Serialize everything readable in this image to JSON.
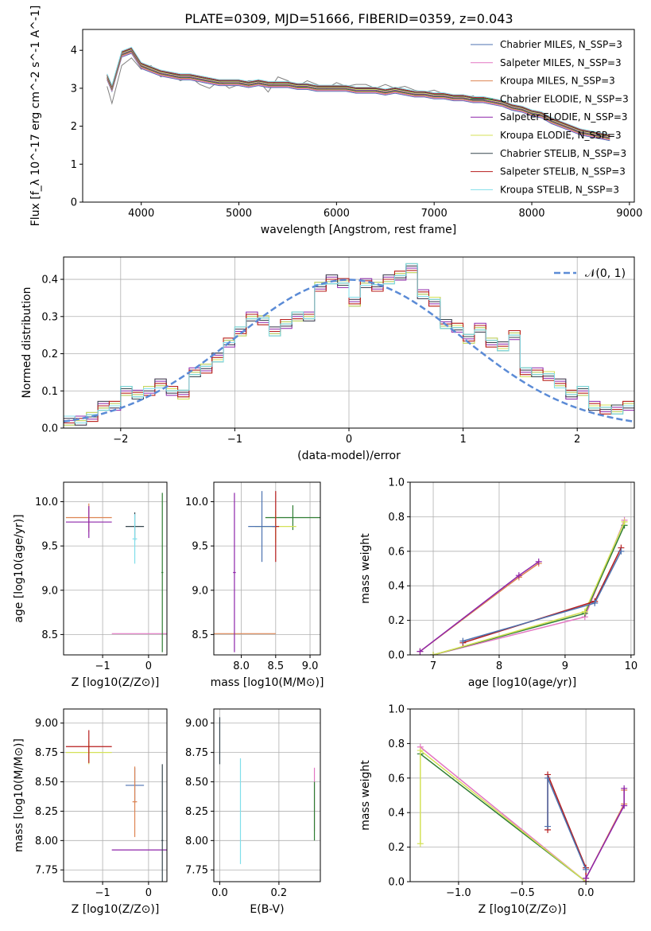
{
  "figure": {
    "title": "PLATE=0309, MJD=51666, FIBERID=0359, z=0.043"
  },
  "model_colors": {
    "Chabrier MILES": "#4c72b0",
    "Salpeter MILES": "#e377c2",
    "Kroupa MILES": "#dd8452",
    "Chabrier ELODIE": "#2e7d32",
    "Salpeter ELODIE": "#8e24aa",
    "Kroupa ELODIE": "#d4e157",
    "Chabrier STELIB": "#37474f",
    "Salpeter STELIB": "#b71c1c",
    "Kroupa STELIB": "#80deea"
  },
  "chart_data": [
    {
      "id": "spectrum",
      "type": "line",
      "title": "PLATE=0309, MJD=51666, FIBERID=0359, z=0.043",
      "xlabel": "wavelength [Angstrom, rest frame]",
      "ylabel": "Flux [f_λ 10^-17 erg cm^-2 s^-1 A^-1]",
      "xlim": [
        3400,
        9050
      ],
      "ylim": [
        0,
        4.55
      ],
      "xticks": [
        4000,
        5000,
        6000,
        7000,
        8000,
        9000
      ],
      "yticks": [
        0,
        1,
        2,
        3,
        4
      ],
      "grid": false,
      "legend_position": "top-right",
      "legend": [
        "Chabrier MILES, N_SSP=3",
        "Salpeter MILES, N_SSP=3",
        "Kroupa MILES, N_SSP=3",
        "Chabrier ELODIE, N_SSP=3",
        "Salpeter ELODIE, N_SSP=3",
        "Kroupa ELODIE, N_SSP=3",
        "Chabrier STELIB, N_SSP=3",
        "Salpeter STELIB, N_SSP=3",
        "Kroupa STELIB, N_SSP=3"
      ],
      "data_color": "#808080",
      "data_x": [
        3650,
        3700,
        3800,
        3900,
        4000,
        4100,
        4200,
        4300,
        4400,
        4500,
        4600,
        4700,
        4800,
        4900,
        5000,
        5100,
        5200,
        5300,
        5400,
        5500,
        5600,
        5700,
        5800,
        5900,
        6000,
        6100,
        6200,
        6300,
        6400,
        6500,
        6600,
        6700,
        6800,
        6900,
        7000,
        7100,
        7200,
        7300,
        7400,
        7450
      ],
      "data_y": [
        3.05,
        2.6,
        3.6,
        3.8,
        3.5,
        3.6,
        3.3,
        3.4,
        3.2,
        3.3,
        3.1,
        3.0,
        3.2,
        3.0,
        3.1,
        3.2,
        3.2,
        2.9,
        3.3,
        3.2,
        3.05,
        3.2,
        3.1,
        3.0,
        3.15,
        3.05,
        3.1,
        3.1,
        3.0,
        3.1,
        3.0,
        3.05,
        2.95,
        2.9,
        2.95,
        2.85,
        2.8,
        2.75,
        2.8,
        2.7
      ],
      "model_x": [
        3650,
        3700,
        3800,
        3900,
        4000,
        4100,
        4200,
        4300,
        4400,
        4500,
        4600,
        4700,
        4800,
        4900,
        5000,
        5100,
        5200,
        5300,
        5400,
        5500,
        5600,
        5700,
        5800,
        5900,
        6000,
        6100,
        6200,
        6300,
        6400,
        6500,
        6600,
        6700,
        6800,
        6900,
        7000,
        7100,
        7200,
        7300,
        7400,
        7500,
        7600,
        7700,
        7800,
        7900,
        8000,
        8100,
        8200,
        8300,
        8400,
        8500,
        8600,
        8700,
        8800
      ],
      "model_y": [
        3.3,
        3.0,
        3.9,
        4.0,
        3.6,
        3.5,
        3.4,
        3.35,
        3.3,
        3.3,
        3.25,
        3.2,
        3.15,
        3.15,
        3.15,
        3.1,
        3.15,
        3.1,
        3.1,
        3.1,
        3.05,
        3.05,
        3.0,
        3.0,
        3.0,
        3.0,
        2.95,
        2.95,
        2.95,
        2.9,
        2.95,
        2.9,
        2.85,
        2.85,
        2.8,
        2.8,
        2.75,
        2.75,
        2.7,
        2.7,
        2.65,
        2.6,
        2.5,
        2.45,
        2.35,
        2.3,
        2.15,
        2.05,
        1.95,
        1.85,
        1.8,
        1.75,
        1.7
      ]
    },
    {
      "id": "residuals",
      "type": "step",
      "xlabel": "(data-model)/error",
      "ylabel": "Normed distribution",
      "xlim": [
        -2.5,
        2.5
      ],
      "ylim": [
        0,
        0.46
      ],
      "xticks": [
        -2,
        -1,
        0,
        1,
        2
      ],
      "yticks": [
        0.0,
        0.1,
        0.2,
        0.3,
        0.4
      ],
      "grid": true,
      "legend_position": "top-right",
      "legend": [
        "𝒩(0, 1)"
      ],
      "bin_edges": [
        -2.5,
        -2.4,
        -2.3,
        -2.2,
        -2.1,
        -2.0,
        -1.9,
        -1.8,
        -1.7,
        -1.6,
        -1.5,
        -1.4,
        -1.3,
        -1.2,
        -1.1,
        -1.0,
        -0.9,
        -0.8,
        -0.7,
        -0.6,
        -0.5,
        -0.4,
        -0.3,
        -0.2,
        -0.1,
        0.0,
        0.1,
        0.2,
        0.3,
        0.4,
        0.5,
        0.6,
        0.7,
        0.8,
        0.9,
        1.0,
        1.1,
        1.2,
        1.3,
        1.4,
        1.5,
        1.6,
        1.7,
        1.8,
        1.9,
        2.0,
        2.1,
        2.2,
        2.3,
        2.4,
        2.5
      ],
      "counts": [
        0.02,
        0.02,
        0.03,
        0.06,
        0.06,
        0.1,
        0.09,
        0.1,
        0.12,
        0.1,
        0.09,
        0.15,
        0.16,
        0.19,
        0.23,
        0.26,
        0.3,
        0.29,
        0.26,
        0.28,
        0.3,
        0.3,
        0.38,
        0.4,
        0.39,
        0.34,
        0.39,
        0.38,
        0.4,
        0.41,
        0.43,
        0.36,
        0.34,
        0.28,
        0.27,
        0.24,
        0.27,
        0.23,
        0.22,
        0.25,
        0.15,
        0.15,
        0.14,
        0.12,
        0.09,
        0.1,
        0.06,
        0.05,
        0.05,
        0.06
      ],
      "normal_curve": true
    },
    {
      "id": "age_vs_metallicity",
      "type": "errorbar",
      "xlabel": "Z [log10(Z/Z⊙)]",
      "ylabel": "age  [log10(age/yr)]",
      "xlim": [
        -1.85,
        0.4
      ],
      "ylim": [
        8.27,
        10.22
      ],
      "xticks": [
        -1,
        0
      ],
      "yticks": [
        8.5,
        9.0,
        9.5,
        10.0
      ],
      "grid": true,
      "points": [
        {
          "x": -1.3,
          "y": 9.82,
          "xerr": 0.5,
          "yerr": 0.16
        },
        {
          "x": -1.3,
          "y": 9.77,
          "xerr": 0.5,
          "yerr": 0.18
        },
        {
          "x": -0.3,
          "y": 9.72,
          "xerr": 0.2,
          "yerr": 0.16
        },
        {
          "x": -0.3,
          "y": 9.58,
          "xerr": 0.05,
          "yerr": 0.28
        },
        {
          "x": 0.3,
          "y": 8.51,
          "xerr": 1.1,
          "yerr": 0.0
        },
        {
          "x": 0.3,
          "y": 9.2,
          "xerr": 0.02,
          "yerr": 0.9
        }
      ]
    },
    {
      "id": "age_vs_mass",
      "type": "errorbar",
      "xlabel": "mass [log10(M/M⊙)]",
      "ylabel": "",
      "xlim": [
        7.6,
        9.15
      ],
      "ylim": [
        8.27,
        10.22
      ],
      "xticks": [
        8.0,
        8.5,
        9.0
      ],
      "yticks": [
        8.5,
        9.0,
        9.5,
        10.0
      ],
      "grid": true,
      "points": [
        {
          "x": 8.75,
          "y": 9.82,
          "xerr": 0.4,
          "yerr": 0.14
        },
        {
          "x": 8.5,
          "y": 9.72,
          "xerr": 0.3,
          "yerr": 0.18
        },
        {
          "x": 8.5,
          "y": 9.72,
          "xerr": 0.05,
          "yerr": 0.4
        },
        {
          "x": 8.3,
          "y": 9.72,
          "xerr": 0.2,
          "yerr": 0.4
        },
        {
          "x": 7.9,
          "y": 8.51,
          "xerr": 0.6,
          "yerr": 0.0
        },
        {
          "x": 7.9,
          "y": 9.2,
          "xerr": 0.02,
          "yerr": 0.9
        }
      ]
    },
    {
      "id": "weight_vs_age",
      "type": "line",
      "xlabel": "age  [log10(age/yr)]",
      "ylabel": "mass weight",
      "xlim": [
        6.65,
        10.05
      ],
      "ylim": [
        0.0,
        1.0
      ],
      "xticks": [
        7,
        8,
        9,
        10
      ],
      "yticks": [
        0.0,
        0.2,
        0.4,
        0.6,
        0.8,
        1.0
      ],
      "grid": true,
      "series": [
        {
          "x": [
            7.0,
            9.3,
            9.9
          ],
          "y": [
            0.0,
            0.22,
            0.78
          ]
        },
        {
          "x": [
            7.0,
            9.3,
            9.9
          ],
          "y": [
            0.0,
            0.24,
            0.75
          ]
        },
        {
          "x": [
            7.0,
            9.3,
            9.9
          ],
          "y": [
            0.0,
            0.25,
            0.77
          ]
        },
        {
          "x": [
            7.45,
            9.45,
            9.85
          ],
          "y": [
            0.07,
            0.31,
            0.62
          ]
        },
        {
          "x": [
            7.45,
            9.45,
            9.85
          ],
          "y": [
            0.08,
            0.3,
            0.6
          ]
        },
        {
          "x": [
            6.8,
            8.3,
            8.6
          ],
          "y": [
            0.02,
            0.45,
            0.53
          ]
        },
        {
          "x": [
            6.8,
            8.3,
            8.6
          ],
          "y": [
            0.02,
            0.46,
            0.54
          ]
        }
      ]
    },
    {
      "id": "mass_vs_metallicity",
      "type": "errorbar",
      "xlabel": "Z [log10(Z/Z⊙)]",
      "ylabel": "mass [log10(M/M⊙)]",
      "xlim": [
        -1.85,
        0.4
      ],
      "ylim": [
        7.65,
        9.12
      ],
      "xticks": [
        -1,
        0
      ],
      "yticks": [
        7.75,
        8.0,
        8.25,
        8.5,
        8.75,
        9.0
      ],
      "grid": true,
      "points": [
        {
          "x": -1.3,
          "y": 8.75,
          "xerr": 0.5,
          "yerr": 0.1
        },
        {
          "x": -1.3,
          "y": 8.8,
          "xerr": 0.5,
          "yerr": 0.14
        },
        {
          "x": -0.3,
          "y": 8.47,
          "xerr": 0.2,
          "yerr": 0.15
        },
        {
          "x": -0.3,
          "y": 8.33,
          "xerr": 0.05,
          "yerr": 0.3
        },
        {
          "x": 0.3,
          "y": 7.92,
          "xerr": 1.1,
          "yerr": 0.0
        },
        {
          "x": 0.3,
          "y": 8.0,
          "xerr": 0.02,
          "yerr": 0.65
        }
      ]
    },
    {
      "id": "mass_vs_ebv",
      "type": "errorbar",
      "xlabel": "E(B-V)",
      "ylabel": "",
      "xlim": [
        -0.02,
        0.34
      ],
      "ylim": [
        7.65,
        9.12
      ],
      "xticks": [
        0.0,
        0.2
      ],
      "yticks": [
        7.75,
        8.0,
        8.25,
        8.5,
        8.75,
        9.0
      ],
      "grid": true,
      "points": [
        {
          "x": 0.0,
          "y": 8.85,
          "xerr": 0.0,
          "yerr": 0.2
        },
        {
          "x": 0.07,
          "y": 8.25,
          "xerr": 0.0,
          "yerr": 0.45
        },
        {
          "x": 0.32,
          "y": 8.35,
          "xerr": 0.0,
          "yerr": 0.27
        },
        {
          "x": 0.32,
          "y": 8.25,
          "xerr": 0.0,
          "yerr": 0.25
        }
      ]
    },
    {
      "id": "weight_vs_metallicity",
      "type": "line",
      "xlabel": "Z [log10(Z/Z⊙)]",
      "ylabel": "mass weight",
      "xlim": [
        -1.38,
        0.38
      ],
      "ylim": [
        0.0,
        1.0
      ],
      "xticks": [
        -1.0,
        -0.5,
        0.0
      ],
      "yticks": [
        0.0,
        0.2,
        0.4,
        0.6,
        0.8,
        1.0
      ],
      "grid": true,
      "series": [
        {
          "x": [
            -1.3,
            0.0
          ],
          "y": [
            0.78,
            0.0
          ]
        },
        {
          "x": [
            -1.3,
            0.0
          ],
          "y": [
            0.74,
            0.0
          ]
        },
        {
          "x": [
            -1.3,
            -1.3,
            0.0
          ],
          "y": [
            0.22,
            0.76,
            0.0
          ]
        },
        {
          "x": [
            -0.3,
            -0.3,
            0.0,
            0.0
          ],
          "y": [
            0.3,
            0.62,
            0.08,
            0.0
          ]
        },
        {
          "x": [
            -0.3,
            -0.3,
            0.0
          ],
          "y": [
            0.32,
            0.6,
            0.07
          ]
        },
        {
          "x": [
            0.0,
            0.3,
            0.3
          ],
          "y": [
            0.02,
            0.45,
            0.53
          ]
        },
        {
          "x": [
            0.0,
            0.3,
            0.3
          ],
          "y": [
            0.02,
            0.44,
            0.54
          ]
        }
      ]
    }
  ]
}
